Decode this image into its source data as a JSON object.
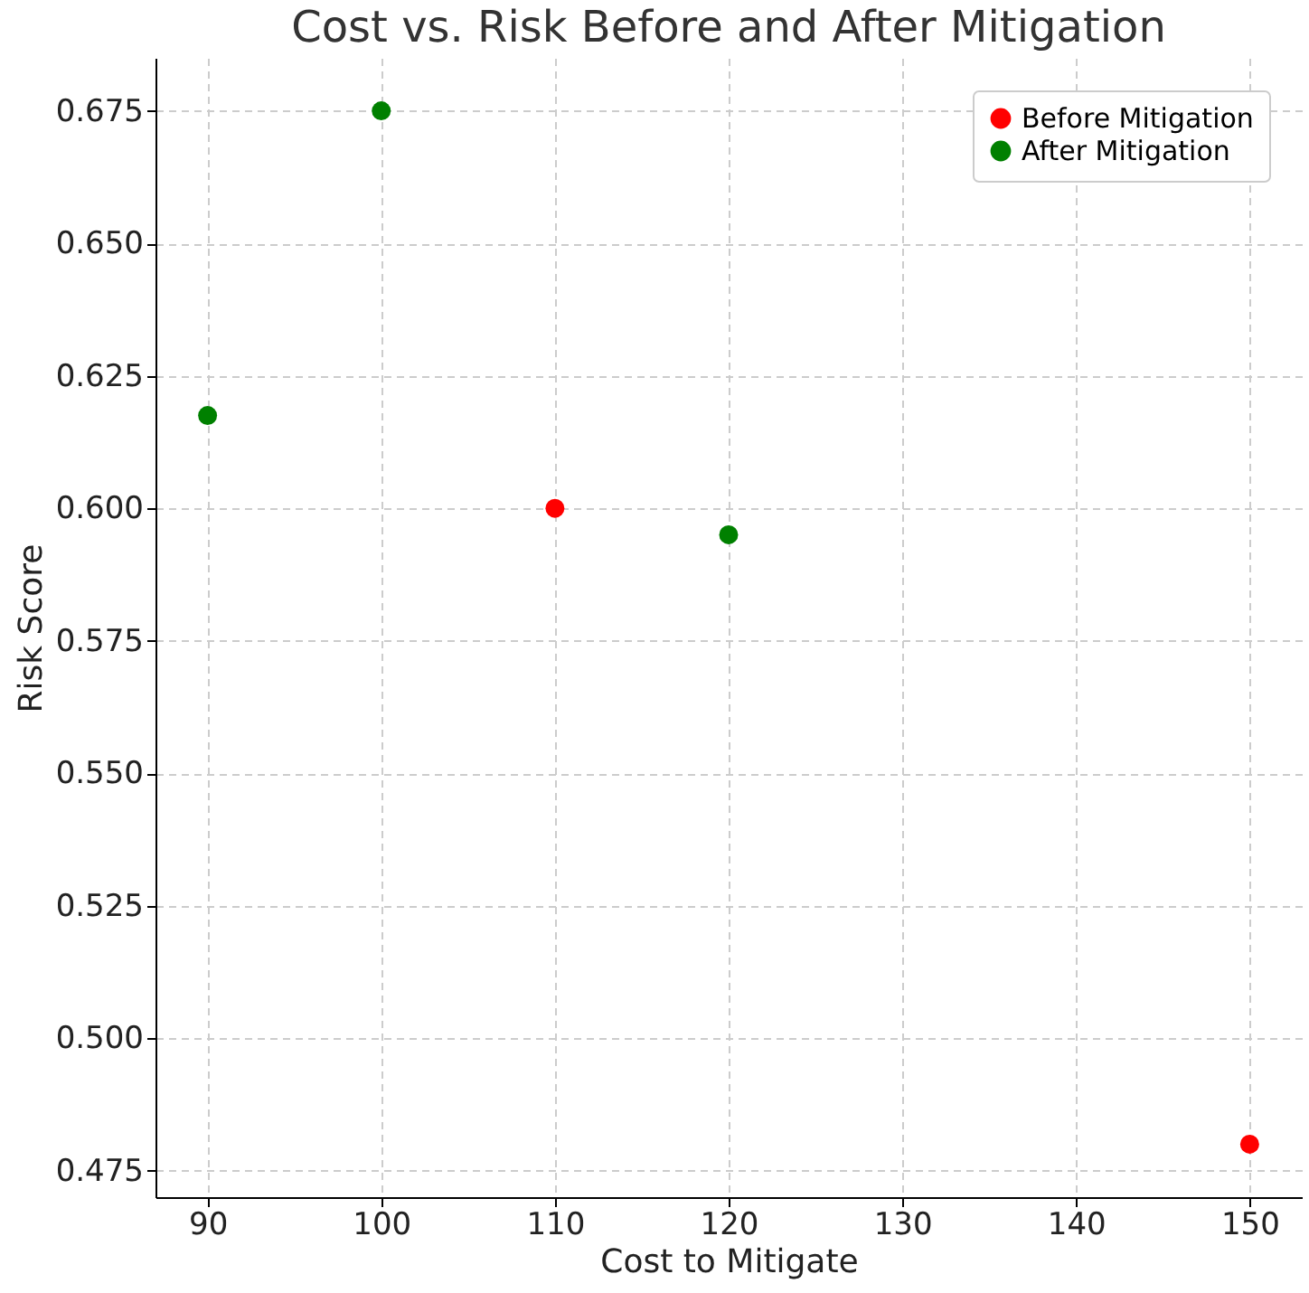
{
  "chart_data": {
    "type": "scatter",
    "title": "Cost vs. Risk Before and After Mitigation",
    "xlabel": "Cost to Mitigate",
    "ylabel": "Risk Score",
    "series": [
      {
        "name": "Before Mitigation",
        "color": "#ff0000",
        "x": [
          110,
          150
        ],
        "values": [
          0.6,
          0.48
        ]
      },
      {
        "name": "After Mitigation",
        "color": "#008000",
        "x": [
          90,
          100,
          120
        ],
        "values": [
          0.6175,
          0.675,
          0.595
        ]
      }
    ],
    "xlim": [
      87,
      153
    ],
    "ylim": [
      0.47,
      0.685
    ],
    "xticks": [
      90,
      100,
      110,
      120,
      130,
      140,
      150
    ],
    "yticks": [
      {
        "value": 0.475,
        "label": "0.475"
      },
      {
        "value": 0.5,
        "label": "0.500"
      },
      {
        "value": 0.525,
        "label": "0.525"
      },
      {
        "value": 0.55,
        "label": "0.550"
      },
      {
        "value": 0.575,
        "label": "0.575"
      },
      {
        "value": 0.6,
        "label": "0.600"
      },
      {
        "value": 0.625,
        "label": "0.625"
      },
      {
        "value": 0.65,
        "label": "0.650"
      },
      {
        "value": 0.675,
        "label": "0.675"
      }
    ],
    "grid": true,
    "legend": "top right",
    "marker": "circle"
  }
}
